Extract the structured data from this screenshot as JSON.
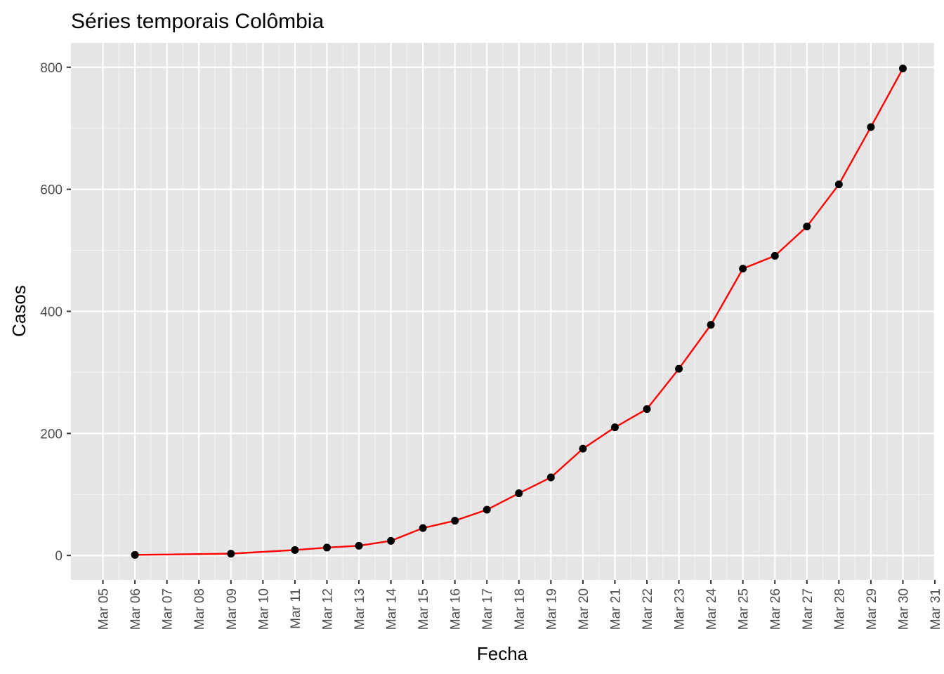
{
  "chart_data": {
    "type": "line",
    "title": "Séries temporais  Colômbia",
    "xlabel": "Fecha",
    "ylabel": "Casos",
    "x_tick_labels": [
      "Mar 05",
      "Mar 06",
      "Mar 07",
      "Mar 08",
      "Mar 09",
      "Mar 10",
      "Mar 11",
      "Mar 12",
      "Mar 13",
      "Mar 14",
      "Mar 15",
      "Mar 16",
      "Mar 17",
      "Mar 18",
      "Mar 19",
      "Mar 20",
      "Mar 21",
      "Mar 22",
      "Mar 23",
      "Mar 24",
      "Mar 25",
      "Mar 26",
      "Mar 27",
      "Mar 28",
      "Mar 29",
      "Mar 30",
      "Mar 31"
    ],
    "y_ticks": [
      0,
      200,
      400,
      600,
      800
    ],
    "y_tick_labels": [
      "0",
      "200",
      "400",
      "600",
      "800"
    ],
    "ylim": [
      -40,
      840
    ],
    "xlim": [
      "2020-03-04",
      "2020-03-31"
    ],
    "grid": true,
    "line_color": "#ff0000",
    "point_color": "#000000",
    "panel_color": "#e5e5e5",
    "series": [
      {
        "x": [
          "Mar 06",
          "Mar 09",
          "Mar 11",
          "Mar 12",
          "Mar 13",
          "Mar 14",
          "Mar 15",
          "Mar 16",
          "Mar 17",
          "Mar 18",
          "Mar 19",
          "Mar 20",
          "Mar 21",
          "Mar 22",
          "Mar 23",
          "Mar 24",
          "Mar 25",
          "Mar 26",
          "Mar 27",
          "Mar 28",
          "Mar 29",
          "Mar 30"
        ],
        "values": [
          1,
          3,
          9,
          13,
          16,
          24,
          45,
          57,
          75,
          102,
          128,
          175,
          210,
          240,
          306,
          378,
          470,
          491,
          539,
          608,
          702,
          798
        ]
      }
    ]
  }
}
